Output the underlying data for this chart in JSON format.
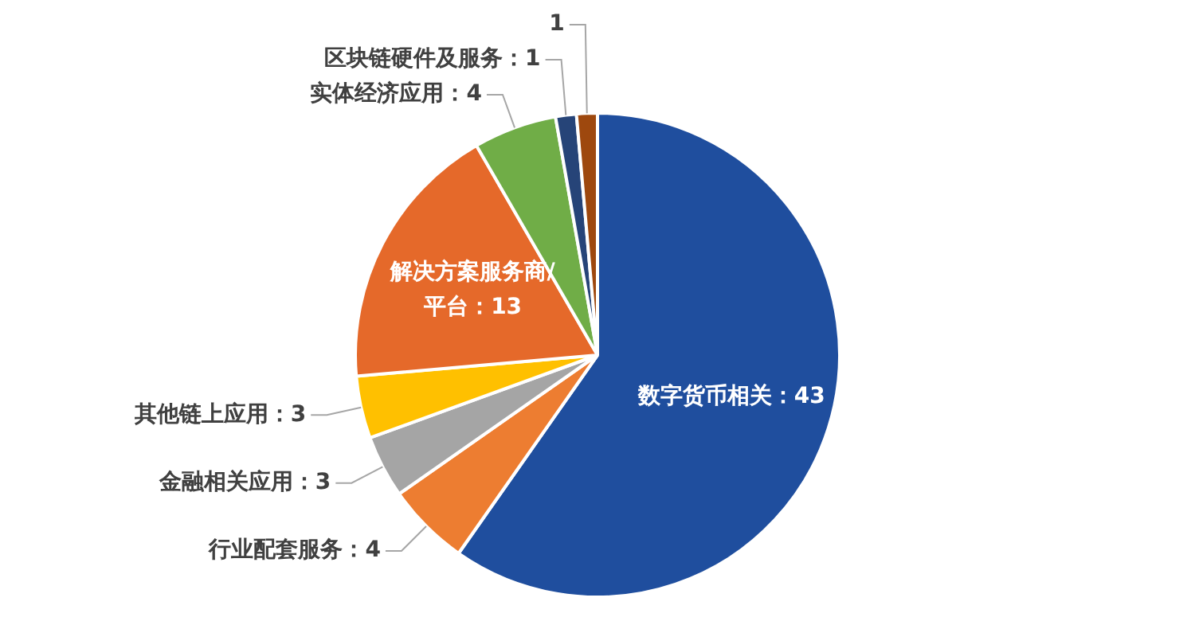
{
  "chart_data": {
    "type": "pie",
    "categories": [
      "数字货币相关",
      "行业配套服务",
      "金融相关应用",
      "其他链上应用",
      "解决方案服务商/平台",
      "实体经济应用",
      "区块链硬件及服务",
      null
    ],
    "values": [
      43,
      4,
      3,
      3,
      13,
      4,
      1,
      1
    ],
    "colors": [
      "#1f4e9e",
      "#ed7d31",
      "#a5a5a5",
      "#ffc000",
      "#e5692a",
      "#70ad47",
      "#264478",
      "#9e480e"
    ],
    "value_labels": [
      "：43",
      "：4",
      "：3",
      "：3",
      "：13",
      "：4",
      "：1",
      "1"
    ],
    "legend": false
  }
}
